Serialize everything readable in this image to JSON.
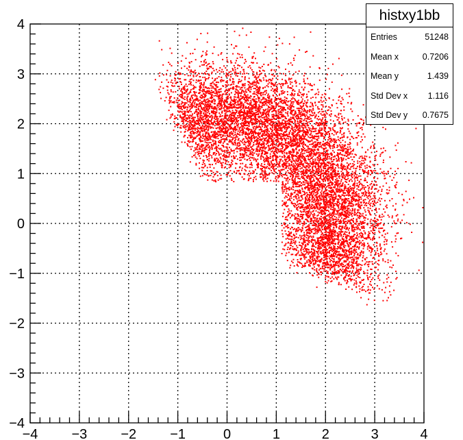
{
  "chart_data": {
    "type": "scatter",
    "title": "",
    "xlabel": "",
    "ylabel": "",
    "xlim": [
      -4,
      4
    ],
    "ylim": [
      -4,
      4
    ],
    "grid": true,
    "x_ticks": [
      "−4",
      "−3",
      "−2",
      "−1",
      "0",
      "1",
      "2",
      "3",
      "4"
    ],
    "y_ticks": [
      "−4",
      "−3",
      "−2",
      "−1",
      "0",
      "1",
      "2",
      "3",
      "4"
    ],
    "marker_color": "#ff0000",
    "distribution": {
      "shape": "annulus sector around origin with inner-bottom-left quadrant cut out",
      "inner_cut": {
        "x_min": 1.1,
        "y_max": 0.85
      },
      "approx_points": 51248
    },
    "stats_box": {
      "title": "histxy1bb",
      "rows": [
        {
          "label": "Entries",
          "value": "51248"
        },
        {
          "label": "Mean x",
          "value": "0.7206"
        },
        {
          "label": "Mean y",
          "value": "1.439"
        },
        {
          "label": "Std Dev x",
          "value": "1.116"
        },
        {
          "label": "Std Dev y",
          "value": "0.7675"
        }
      ]
    }
  }
}
